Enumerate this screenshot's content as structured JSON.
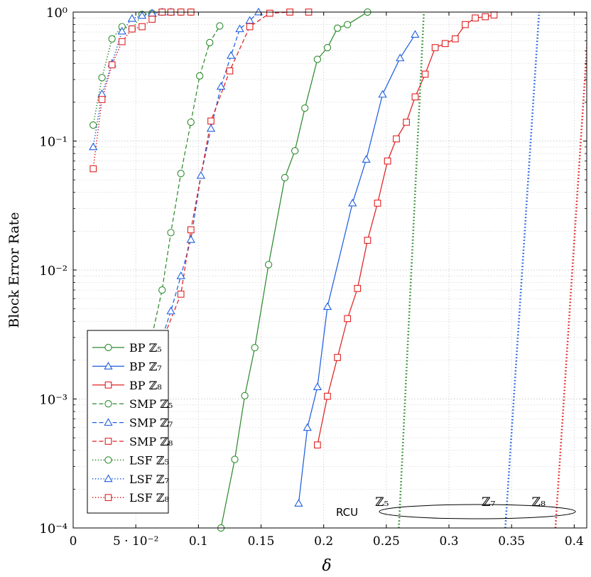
{
  "chart_data": {
    "type": "line",
    "title": "",
    "xlabel": "δ",
    "ylabel": "Block Error Rate",
    "x_scale": "linear",
    "y_scale": "log",
    "xlim": [
      0,
      0.41
    ],
    "ylim": [
      0.0001,
      1
    ],
    "x_ticks": [
      {
        "value": 0,
        "label": "0"
      },
      {
        "value": 0.05,
        "label": "5 · 10⁻²"
      },
      {
        "value": 0.1,
        "label": "0.1"
      },
      {
        "value": 0.15,
        "label": "0.15"
      },
      {
        "value": 0.2,
        "label": "0.2"
      },
      {
        "value": 0.25,
        "label": "0.25"
      },
      {
        "value": 0.3,
        "label": "0.3"
      },
      {
        "value": 0.35,
        "label": "0.35"
      },
      {
        "value": 0.4,
        "label": "0.4"
      }
    ],
    "y_ticks": [
      {
        "value": 0.0001,
        "label": "10⁻⁴"
      },
      {
        "value": 0.001,
        "label": "10⁻³"
      },
      {
        "value": 0.01,
        "label": "10⁻²"
      },
      {
        "value": 0.1,
        "label": "10⁻¹"
      },
      {
        "value": 1,
        "label": "10⁰"
      }
    ],
    "grid": true,
    "legend_position": "bottom-left",
    "series": [
      {
        "name": "BP ℤ₅",
        "color": "#2e8b2e",
        "dash": "solid",
        "marker": "circle",
        "x": [
          0.118,
          0.129,
          0.137,
          0.145,
          0.156,
          0.169,
          0.177,
          0.185,
          0.195,
          0.203,
          0.211,
          0.219,
          0.235
        ],
        "y": [
          0.0001,
          0.00034,
          0.00106,
          0.0025,
          0.011,
          0.052,
          0.084,
          0.18,
          0.43,
          0.53,
          0.75,
          0.8,
          1.0
        ]
      },
      {
        "name": "BP ℤ₇",
        "color": "#1f5fe0",
        "dash": "solid",
        "marker": "triangle",
        "x": [
          0.18,
          0.187,
          0.195,
          0.203,
          0.223,
          0.234,
          0.247,
          0.261,
          0.273
        ],
        "y": [
          0.000155,
          0.0006,
          0.00124,
          0.0052,
          0.033,
          0.072,
          0.23,
          0.44,
          0.67
        ]
      },
      {
        "name": "BP ℤ₈",
        "color": "#e02020",
        "dash": "solid",
        "marker": "square",
        "x": [
          0.195,
          0.203,
          0.211,
          0.219,
          0.227,
          0.235,
          0.243,
          0.251,
          0.258,
          0.266,
          0.273,
          0.281,
          0.289,
          0.297,
          0.305,
          0.313,
          0.321,
          0.329,
          0.336
        ],
        "y": [
          0.00044,
          0.00105,
          0.0021,
          0.0042,
          0.0072,
          0.017,
          0.033,
          0.07,
          0.104,
          0.14,
          0.22,
          0.33,
          0.53,
          0.57,
          0.62,
          0.8,
          0.9,
          0.92,
          0.95
        ]
      },
      {
        "name": "SMP ℤ₅",
        "color": "#2e8b2e",
        "dash": "dashed",
        "marker": "circle",
        "x": [
          0.062,
          0.071,
          0.078,
          0.086,
          0.094,
          0.101,
          0.109,
          0.117
        ],
        "y": [
          0.0028,
          0.007,
          0.0195,
          0.056,
          0.14,
          0.32,
          0.58,
          0.78
        ]
      },
      {
        "name": "SMP ℤ₇",
        "color": "#1f5fe0",
        "dash": "dashed",
        "marker": "triangle",
        "x": [
          0.07,
          0.078,
          0.086,
          0.094,
          0.102,
          0.11,
          0.118,
          0.126,
          0.133,
          0.141,
          0.148
        ],
        "y": [
          0.0028,
          0.0048,
          0.009,
          0.0172,
          0.054,
          0.125,
          0.265,
          0.46,
          0.74,
          0.86,
          1.0
        ]
      },
      {
        "name": "SMP ℤ₈",
        "color": "#e02020",
        "dash": "dashed",
        "marker": "square",
        "x": [
          0.071,
          0.086,
          0.094,
          0.11,
          0.125,
          0.141,
          0.157,
          0.173,
          0.188
        ],
        "y": [
          0.0028,
          0.0065,
          0.0205,
          0.143,
          0.35,
          0.77,
          0.98,
          1.0,
          1.0
        ]
      },
      {
        "name": "LSF ℤ₅",
        "color": "#2e8b2e",
        "dash": "dotted",
        "marker": "circle",
        "x": [
          0.016,
          0.023,
          0.031,
          0.039,
          0.047,
          0.055,
          0.063,
          0.071,
          0.078,
          0.086,
          0.094
        ],
        "y": [
          0.133,
          0.31,
          0.62,
          0.77,
          0.74,
          0.96,
          0.98,
          1.0,
          1.0,
          1.0,
          1.0
        ]
      },
      {
        "name": "LSF ℤ₇",
        "color": "#1f5fe0",
        "dash": "dotted",
        "marker": "triangle",
        "x": [
          0.016,
          0.023,
          0.031,
          0.039,
          0.047,
          0.055,
          0.063,
          0.071,
          0.078
        ],
        "y": [
          0.09,
          0.232,
          0.4,
          0.71,
          0.89,
          0.94,
          0.98,
          1.0,
          1.0
        ]
      },
      {
        "name": "LSF ℤ₈",
        "color": "#e02020",
        "dash": "dotted",
        "marker": "square",
        "x": [
          0.016,
          0.023,
          0.031,
          0.039,
          0.047,
          0.055,
          0.063,
          0.071,
          0.078,
          0.086,
          0.094
        ],
        "y": [
          0.061,
          0.21,
          0.39,
          0.59,
          0.74,
          0.77,
          0.88,
          1.0,
          1.0,
          1.0,
          1.0
        ]
      }
    ],
    "rcu_bounds": [
      {
        "label": "ℤ₅",
        "color": "#2e8b2e",
        "x": [
          0.26,
          0.28
        ],
        "y": [
          0.0001,
          1
        ]
      },
      {
        "label": "ℤ₇",
        "color": "#1f5fe0",
        "x": [
          0.345,
          0.372
        ],
        "y": [
          0.0001,
          1
        ]
      },
      {
        "label": "ℤ₈",
        "color": "#e02020",
        "x": [
          0.385,
          0.412
        ],
        "y": [
          0.0001,
          1
        ]
      }
    ],
    "annotation_text": "RCU"
  }
}
